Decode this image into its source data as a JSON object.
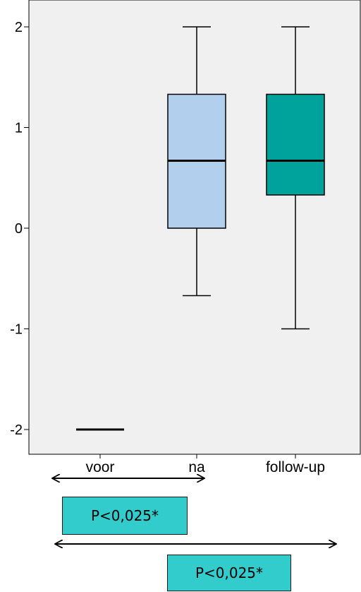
{
  "chart_data": {
    "type": "boxplot",
    "categories": [
      "voor",
      "na",
      "follow-up"
    ],
    "y_ticks": [
      "2",
      "1",
      "0",
      "-1",
      "-2"
    ],
    "ylim": [
      -2.2,
      2.2
    ],
    "grid": false,
    "boxes": [
      {
        "category": "voor",
        "min": -2,
        "q1": -2,
        "median": -2,
        "q3": -2,
        "max": -2,
        "color": "#000000"
      },
      {
        "category": "na",
        "min": -0.67,
        "q1": 0,
        "median": 0.67,
        "q3": 1.33,
        "max": 2,
        "color": "#b2cfee"
      },
      {
        "category": "follow-up",
        "min": -1,
        "q1": 0.33,
        "median": 0.67,
        "q3": 1.33,
        "max": 2,
        "color": "#00a39c"
      }
    ],
    "annotations": [
      {
        "from": "voor",
        "to": "na",
        "text": "P<0,025*"
      },
      {
        "from": "voor",
        "to": "follow-up",
        "text": "P<0,025*"
      }
    ],
    "colors": {
      "background": "#f0f0f0",
      "annotation_box": "#33cccc"
    }
  }
}
